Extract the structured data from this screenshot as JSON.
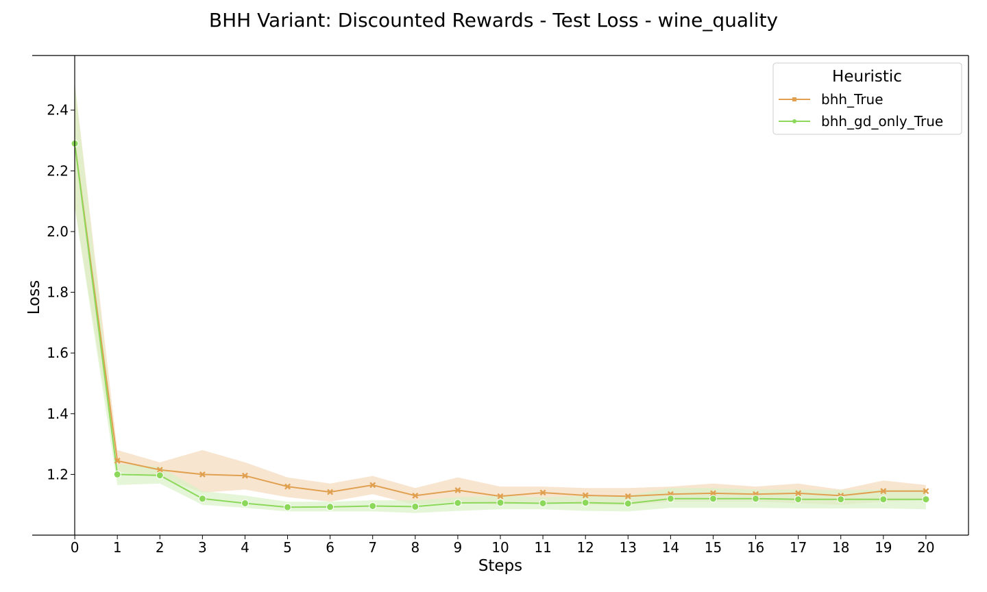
{
  "chart_data": {
    "type": "line",
    "title": "BHH Variant: Discounted Rewards - Test Loss - wine_quality",
    "xlabel": "Steps",
    "ylabel": "Loss",
    "x": [
      0,
      1,
      2,
      3,
      4,
      5,
      6,
      7,
      8,
      9,
      10,
      11,
      12,
      13,
      14,
      15,
      16,
      17,
      18,
      19,
      20
    ],
    "xlim": [
      -1,
      21
    ],
    "ylim": [
      1.0,
      2.58
    ],
    "yticks": [
      1.2,
      1.4,
      1.6,
      1.8,
      2.0,
      2.2,
      2.4
    ],
    "ytick_labels": [
      "1.2",
      "1.4",
      "1.6",
      "1.8",
      "2.0",
      "2.2",
      "2.4"
    ],
    "xtick_labels": [
      "0",
      "1",
      "2",
      "3",
      "4",
      "5",
      "6",
      "7",
      "8",
      "9",
      "10",
      "11",
      "12",
      "13",
      "14",
      "15",
      "16",
      "17",
      "18",
      "19",
      "20"
    ],
    "grid": false,
    "legend": {
      "title": "Heuristic",
      "placement": "top-right"
    },
    "series": [
      {
        "name": "bhh_True",
        "color": "#e0a050",
        "band_color": "#f5dcc0",
        "marker": "x",
        "values": [
          2.29,
          1.245,
          1.215,
          1.2,
          1.196,
          1.16,
          1.142,
          1.165,
          1.13,
          1.148,
          1.128,
          1.14,
          1.131,
          1.128,
          1.135,
          1.138,
          1.135,
          1.138,
          1.13,
          1.145,
          1.145
        ],
        "lower": [
          2.08,
          1.21,
          1.19,
          1.14,
          1.15,
          1.125,
          1.11,
          1.135,
          1.1,
          1.11,
          1.1,
          1.11,
          1.1,
          1.1,
          1.11,
          1.11,
          1.11,
          1.105,
          1.1,
          1.11,
          1.115
        ],
        "upper": [
          2.49,
          1.28,
          1.24,
          1.28,
          1.24,
          1.19,
          1.17,
          1.195,
          1.155,
          1.19,
          1.16,
          1.16,
          1.155,
          1.155,
          1.16,
          1.17,
          1.16,
          1.17,
          1.15,
          1.18,
          1.165
        ]
      },
      {
        "name": "bhh_gd_only_True",
        "color": "#8cd85a",
        "band_color": "#d9f2c6",
        "marker": "o",
        "values": [
          2.29,
          1.2,
          1.197,
          1.12,
          1.105,
          1.092,
          1.093,
          1.096,
          1.094,
          1.106,
          1.107,
          1.105,
          1.107,
          1.104,
          1.12,
          1.12,
          1.12,
          1.118,
          1.118,
          1.118,
          1.118
        ],
        "lower": [
          2.08,
          1.165,
          1.17,
          1.1,
          1.09,
          1.078,
          1.078,
          1.078,
          1.073,
          1.08,
          1.085,
          1.085,
          1.08,
          1.078,
          1.09,
          1.09,
          1.09,
          1.088,
          1.088,
          1.088,
          1.085
        ],
        "upper": [
          2.49,
          1.235,
          1.225,
          1.145,
          1.13,
          1.11,
          1.11,
          1.115,
          1.115,
          1.125,
          1.13,
          1.125,
          1.13,
          1.13,
          1.155,
          1.155,
          1.15,
          1.15,
          1.148,
          1.15,
          1.15
        ]
      }
    ]
  }
}
